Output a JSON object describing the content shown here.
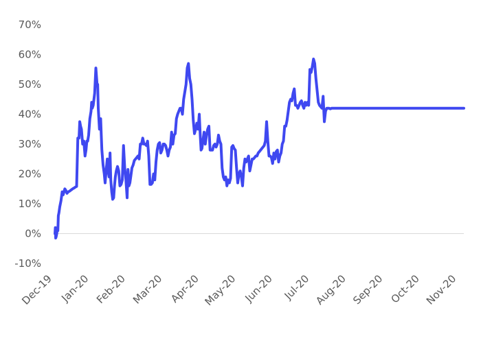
{
  "chart_data": {
    "type": "line",
    "title": "",
    "xlabel": "",
    "ylabel": "",
    "ylim": [
      -10,
      70
    ],
    "y_ticks": [
      "-10%",
      "0%",
      "10%",
      "20%",
      "30%",
      "40%",
      "50%",
      "60%",
      "70%"
    ],
    "y_tick_values": [
      -10,
      0,
      10,
      20,
      30,
      40,
      50,
      60,
      70
    ],
    "x_ticks": [
      "Dec-19",
      "Jan-20",
      "Feb-20",
      "Mar-20",
      "Apr-20",
      "May-20",
      "Jun-20",
      "Jul-20",
      "Aug-20",
      "Sep-20",
      "Oct-20",
      "Nov-20"
    ],
    "grid": false,
    "legend": "none",
    "line_color": "#3f48f0",
    "series": [
      {
        "x": [
          0,
          0.3,
          0.6,
          1.0,
          1.5,
          2.0,
          2.4,
          2.8,
          3.3,
          4.0,
          5.0,
          6.0,
          6.8,
          7.5,
          8.2,
          9.0,
          10.0,
          11.0,
          12.0,
          13.0,
          14.0,
          15.0,
          16.0,
          17.0,
          18.0,
          19.0,
          20.0,
          20.6,
          21.3,
          22.0,
          23.0,
          24.0,
          25.0,
          25.8,
          26.5,
          27.2,
          28.0,
          29.0,
          30.0,
          30.5,
          31.0,
          31.8,
          32.4,
          33.0,
          34.0,
          35.0,
          35.5,
          36.0,
          37.0,
          38.0,
          38.5,
          39.0,
          40.0,
          41.0,
          41.7,
          42.5,
          43.5,
          44.2,
          45.0,
          45.8,
          46.4,
          47.2,
          48.0,
          48.8,
          49.5,
          50.2,
          51.0,
          52.0,
          53.0,
          54.0,
          55.0,
          56.0,
          57.0,
          58.0,
          59.0,
          60.0,
          60.7,
          61.5,
          62.3,
          63.0,
          64.0,
          65.0,
          66.0,
          67.0,
          68.0,
          69.0,
          70.0,
          71.0,
          72.0,
          73.0,
          74.0,
          75.0,
          76.0,
          77.0,
          78.0,
          79.0,
          80.0,
          81.0,
          82.0,
          83.0,
          84.0,
          85.0,
          86.0,
          87.0,
          88.0,
          89.0,
          90.0,
          91.0,
          92.0,
          93.0,
          94.0,
          95.0,
          96.0,
          97.0,
          98.0,
          99.0,
          100.0,
          101.0,
          102.0,
          103.0,
          104.0,
          105.0,
          106.0,
          107.0,
          108.0,
          109.0,
          110.0,
          111.0,
          112.0,
          113.0,
          114.0,
          115.0,
          116.0,
          117.0,
          118.0,
          119.0,
          120.0,
          120.8,
          121.5,
          122.2,
          123.0,
          124.0,
          125.0,
          126.0,
          127.0,
          128.0,
          129.0,
          130.0,
          131.0,
          132.0,
          133.0,
          134.0,
          135.0,
          136.0,
          137.0,
          138.0,
          139.0,
          140.0,
          141.0,
          142.0,
          143.0,
          144.0,
          145.0,
          146.0,
          147.0,
          148.0,
          149.0,
          150.0,
          151.0,
          152.0,
          153.0,
          154.0,
          155.0,
          156.0,
          157.0,
          158.0,
          159.0,
          160.0,
          161.0,
          162.0,
          163.0,
          164.0,
          165.0,
          166.0,
          167.0,
          168.0,
          169.0,
          170.0,
          171.0,
          172.0,
          173.0,
          174.0,
          175.0,
          176.0,
          177.0,
          178.0,
          179.0,
          180.0,
          181.0,
          182.0,
          183.0,
          184.0,
          185.0,
          186.0,
          187.0,
          188.0,
          189.0,
          190.0,
          191.0,
          192.0,
          193.0,
          194.0,
          195.0,
          196.0,
          197.0,
          198.0,
          199.0,
          200.0,
          201.0,
          202.0,
          203.0,
          204.0,
          205.0,
          206.0,
          207.0,
          208.0,
          209.0,
          210.0,
          211.0,
          212.0,
          213.0,
          214.0,
          215.0,
          216.0,
          217.0,
          218.0,
          219.0,
          220.0,
          221.0,
          222.0,
          223.0,
          224.0,
          225.0,
          226.0,
          227.0,
          228.0,
          229.0,
          230.0,
          231.0,
          232.0,
          233.0,
          234.0,
          235.0,
          236.0,
          237.0,
          238.0,
          239.0,
          240.0,
          241.0,
          242.0,
          243.0,
          244.0,
          245.0,
          246.0,
          247.0,
          248.0,
          249.0,
          250.0,
          251.0,
          252.0,
          253.0,
          254.0,
          255.0,
          256.0,
          257.0,
          258.0,
          259.0,
          260.0,
          261.0,
          262.0,
          263.0,
          264.0,
          265.0,
          266.0,
          267.0,
          268.0,
          269.0,
          270.0,
          271.0,
          272.0,
          273.0,
          274.0,
          275.0,
          276.0,
          277.0,
          278.0,
          279.0,
          280.0,
          281.0,
          282.0,
          283.0,
          284.0,
          285.0,
          286.0,
          287.0,
          288.0,
          289.0,
          290.0,
          291.0,
          292.0,
          293.0,
          294.0,
          295.0,
          296.0,
          297.0,
          298.0,
          299.0,
          300.0,
          301.0,
          302.0,
          303.0,
          304.0,
          305.0,
          306.0,
          307.0,
          308.0,
          309.0,
          310.0,
          311.0,
          312.0,
          313.0,
          314.0,
          315.0,
          316.0,
          317.0,
          318.0,
          319.0,
          320.0,
          321.0,
          322.0,
          323.0,
          324.0,
          325.0,
          326.0,
          327.0,
          328.0,
          329.0,
          330.0,
          331.0,
          332.0,
          333.0,
          334.0,
          335.0,
          336.0,
          337.0,
          338.0,
          339.0,
          340.0
        ],
        "values": [
          0,
          2,
          -1.5,
          -1,
          0,
          2,
          1,
          6,
          7,
          9,
          11,
          14,
          13,
          14,
          15,
          14.5,
          13.5,
          14,
          14.2,
          14.5,
          14.8,
          15.1,
          15.3,
          15.6,
          15.8,
          32,
          32,
          37.5,
          36,
          35,
          30,
          31,
          26,
          28,
          31,
          31,
          33,
          38.5,
          41,
          44,
          42,
          43,
          45,
          47,
          55.5,
          50,
          50,
          42,
          35,
          38.5,
          33,
          28,
          23,
          20,
          17,
          21,
          25,
          21,
          19,
          27,
          18,
          14,
          11.5,
          12,
          16,
          19,
          21,
          22.5,
          21,
          16,
          16.5,
          18,
          29.5,
          22,
          18,
          12,
          21.5,
          16,
          17,
          19,
          22,
          23,
          24.5,
          25,
          25.5,
          26,
          25,
          30,
          30,
          32,
          30,
          30,
          29.5,
          31,
          26,
          16.5,
          16.5,
          17,
          20,
          18,
          24,
          28,
          30,
          30.5,
          27,
          28,
          30,
          30,
          29.5,
          28,
          26,
          28,
          29,
          34,
          30,
          33,
          33.5,
          38.5,
          40,
          41,
          42,
          42,
          40,
          45,
          47.5,
          50,
          55.5,
          57,
          52,
          50,
          45,
          38,
          33.5,
          35,
          37,
          35,
          40,
          33,
          28,
          28.5,
          31,
          34,
          30,
          33,
          35,
          36,
          28,
          28,
          28,
          29.5,
          30,
          29,
          30,
          33,
          31,
          30,
          22,
          19,
          18,
          19,
          16,
          18,
          17,
          18.5,
          29,
          29.5,
          28.5,
          28,
          22,
          17,
          20,
          21,
          19,
          16,
          22,
          25,
          24,
          25,
          26,
          21,
          23,
          25,
          25,
          25.5,
          26,
          26,
          27,
          27.5,
          28,
          28.5,
          29,
          29.5,
          31,
          37.5,
          31,
          26,
          26,
          25.5,
          23.5,
          27,
          25,
          27.5,
          28,
          24,
          26,
          27,
          30,
          31,
          36,
          36,
          38,
          41,
          44,
          45,
          44.5,
          47,
          48.5,
          43,
          43,
          42,
          43,
          44,
          44.5,
          43,
          42,
          44,
          43,
          44,
          43,
          55,
          54,
          56,
          58.5,
          57,
          52,
          48,
          44,
          43,
          42.5,
          42,
          46,
          37.5,
          41,
          42,
          42,
          42,
          41.8,
          42,
          42,
          42,
          42,
          42,
          42,
          42,
          42,
          42,
          42,
          42,
          42,
          42,
          42,
          42,
          42,
          42,
          42,
          42,
          42,
          42,
          42,
          42,
          42,
          42,
          42,
          42,
          42,
          42,
          42,
          42,
          42,
          42,
          42,
          42,
          42,
          42,
          42,
          42,
          42,
          42,
          42,
          42,
          42,
          42,
          42,
          42,
          42,
          42,
          42,
          42,
          42,
          42,
          42,
          42,
          42,
          42,
          42,
          42,
          42,
          42,
          42,
          42,
          42,
          42,
          42,
          42,
          42,
          42,
          42,
          42,
          42,
          42,
          42,
          42,
          42,
          42,
          42,
          42,
          42,
          42,
          42,
          42,
          42,
          42,
          42,
          42,
          42,
          42,
          42,
          42,
          42,
          42,
          42,
          42,
          42,
          42,
          42,
          42,
          42,
          42,
          42,
          42,
          42,
          42,
          42,
          42,
          42,
          42,
          42,
          42
        ]
      }
    ]
  }
}
